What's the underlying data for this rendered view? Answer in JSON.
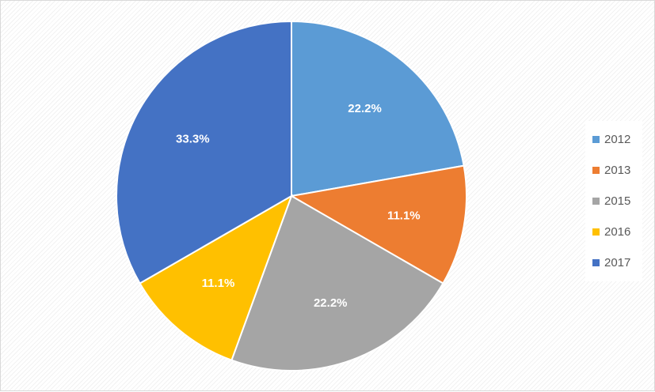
{
  "chart_data": {
    "type": "pie",
    "title": "",
    "categories": [
      "2012",
      "2013",
      "2015",
      "2016",
      "2017"
    ],
    "values": [
      22.2,
      11.1,
      22.2,
      11.1,
      33.3
    ],
    "labels": [
      "22.2%",
      "11.1%",
      "22.2%",
      "11.1%",
      "33.3%"
    ],
    "colors": [
      "#5b9bd5",
      "#ed7d31",
      "#a5a5a5",
      "#ffc000",
      "#4472c4"
    ],
    "start_angle": "12 o'clock",
    "direction": "clockwise",
    "legend": {
      "position": "right",
      "items": [
        {
          "label": "2012",
          "color": "#5b9bd5"
        },
        {
          "label": "2013",
          "color": "#ed7d31"
        },
        {
          "label": "2015",
          "color": "#a5a5a5"
        },
        {
          "label": "2016",
          "color": "#ffc000"
        },
        {
          "label": "2017",
          "color": "#4472c4"
        }
      ]
    }
  }
}
